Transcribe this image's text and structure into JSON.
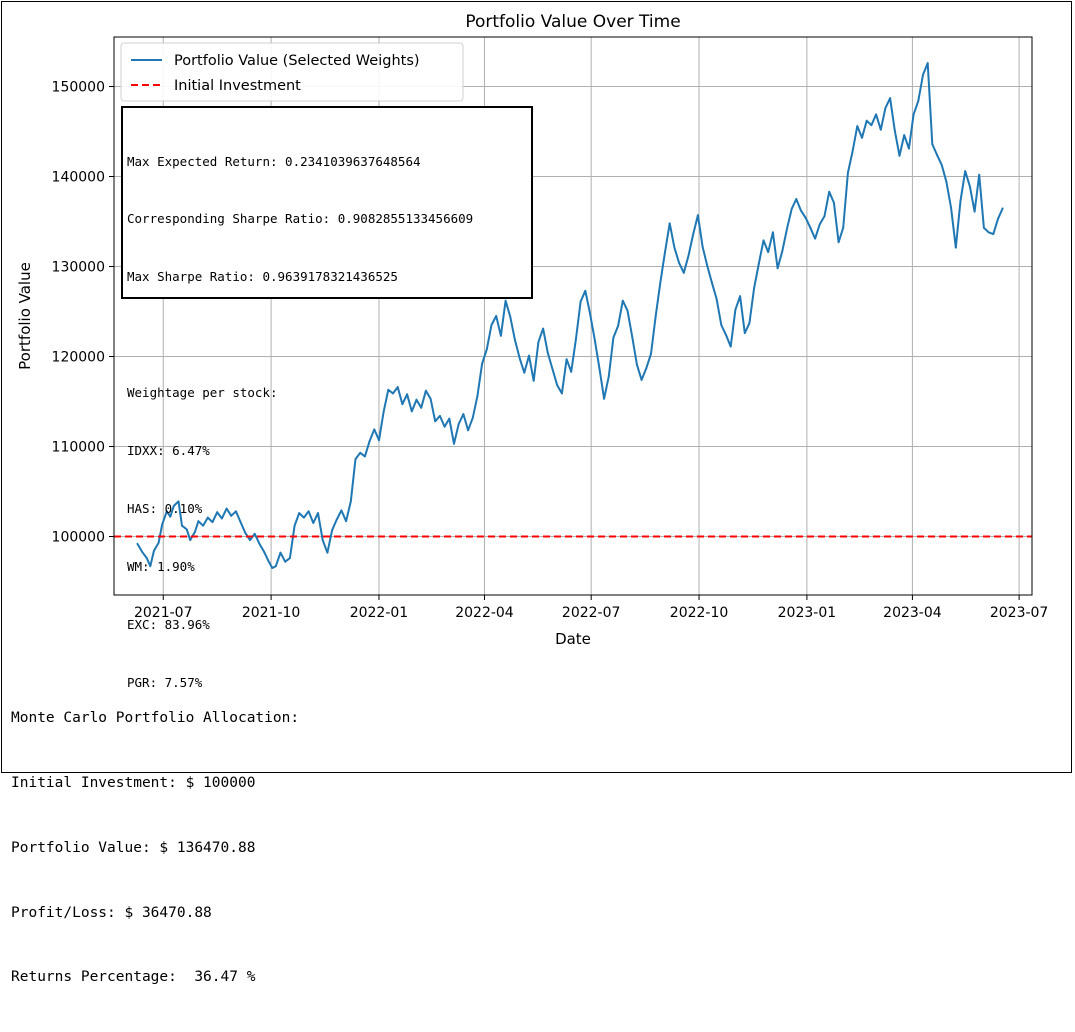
{
  "chart_data": {
    "type": "line",
    "title": "Portfolio Value Over Time",
    "xlabel": "Date",
    "ylabel": "Portfolio Value",
    "xlim": [
      "2021-05-20",
      "2023-07-12"
    ],
    "ylim": [
      93500,
      155500
    ],
    "x_ticks": [
      "2021-07-01",
      "2021-10-01",
      "2022-01-01",
      "2022-04-01",
      "2022-07-01",
      "2022-10-01",
      "2023-01-01",
      "2023-04-01",
      "2023-07-01"
    ],
    "x_tick_labels": [
      "2021-07",
      "2021-10",
      "2022-01",
      "2022-04",
      "2022-07",
      "2022-10",
      "2023-01",
      "2023-04",
      "2023-07"
    ],
    "y_ticks": [
      100000,
      110000,
      120000,
      130000,
      140000,
      150000
    ],
    "y_tick_labels": [
      "100000",
      "110000",
      "120000",
      "130000",
      "140000",
      "150000"
    ],
    "grid": true,
    "legend_position": "top-left",
    "series": [
      {
        "name": "Portfolio Value (Selected Weights)",
        "color": "#1f77b4",
        "style": "solid",
        "points": [
          [
            "2021-06-09",
            99200
          ],
          [
            "2021-06-13",
            98300
          ],
          [
            "2021-06-17",
            97600
          ],
          [
            "2021-06-20",
            96700
          ],
          [
            "2021-06-23",
            98400
          ],
          [
            "2021-06-27",
            99300
          ],
          [
            "2021-06-30",
            101300
          ],
          [
            "2021-07-04",
            102800
          ],
          [
            "2021-07-07",
            102200
          ],
          [
            "2021-07-10",
            103400
          ],
          [
            "2021-07-14",
            103900
          ],
          [
            "2021-07-17",
            101200
          ],
          [
            "2021-07-21",
            100800
          ],
          [
            "2021-07-24",
            99600
          ],
          [
            "2021-07-28",
            100500
          ],
          [
            "2021-07-31",
            101700
          ],
          [
            "2021-08-04",
            101200
          ],
          [
            "2021-08-08",
            102100
          ],
          [
            "2021-08-12",
            101600
          ],
          [
            "2021-08-16",
            102700
          ],
          [
            "2021-08-20",
            102000
          ],
          [
            "2021-08-24",
            103100
          ],
          [
            "2021-08-28",
            102300
          ],
          [
            "2021-09-01",
            102800
          ],
          [
            "2021-09-05",
            101600
          ],
          [
            "2021-09-09",
            100400
          ],
          [
            "2021-09-13",
            99600
          ],
          [
            "2021-09-17",
            100300
          ],
          [
            "2021-09-21",
            99200
          ],
          [
            "2021-09-25",
            98300
          ],
          [
            "2021-09-29",
            97200
          ],
          [
            "2021-10-02",
            96500
          ],
          [
            "2021-10-05",
            96700
          ],
          [
            "2021-10-09",
            98200
          ],
          [
            "2021-10-13",
            97200
          ],
          [
            "2021-10-17",
            97600
          ],
          [
            "2021-10-21",
            101200
          ],
          [
            "2021-10-25",
            102600
          ],
          [
            "2021-10-29",
            102100
          ],
          [
            "2021-11-02",
            102800
          ],
          [
            "2021-11-06",
            101500
          ],
          [
            "2021-11-10",
            102600
          ],
          [
            "2021-11-14",
            99600
          ],
          [
            "2021-11-18",
            98200
          ],
          [
            "2021-11-22",
            100700
          ],
          [
            "2021-11-26",
            101900
          ],
          [
            "2021-11-30",
            102900
          ],
          [
            "2021-12-04",
            101700
          ],
          [
            "2021-12-08",
            103900
          ],
          [
            "2021-12-12",
            108600
          ],
          [
            "2021-12-16",
            109300
          ],
          [
            "2021-12-20",
            108900
          ],
          [
            "2021-12-24",
            110600
          ],
          [
            "2021-12-28",
            111900
          ],
          [
            "2022-01-01",
            110700
          ],
          [
            "2022-01-05",
            113900
          ],
          [
            "2022-01-09",
            116300
          ],
          [
            "2022-01-13",
            115900
          ],
          [
            "2022-01-17",
            116600
          ],
          [
            "2022-01-21",
            114700
          ],
          [
            "2022-01-25",
            115800
          ],
          [
            "2022-01-29",
            113900
          ],
          [
            "2022-02-02",
            115200
          ],
          [
            "2022-02-06",
            114300
          ],
          [
            "2022-02-10",
            116200
          ],
          [
            "2022-02-14",
            115300
          ],
          [
            "2022-02-18",
            112800
          ],
          [
            "2022-02-22",
            113400
          ],
          [
            "2022-02-26",
            112200
          ],
          [
            "2022-03-02",
            113100
          ],
          [
            "2022-03-06",
            110300
          ],
          [
            "2022-03-10",
            112500
          ],
          [
            "2022-03-14",
            113600
          ],
          [
            "2022-03-18",
            111800
          ],
          [
            "2022-03-22",
            113200
          ],
          [
            "2022-03-26",
            115600
          ],
          [
            "2022-03-30",
            119200
          ],
          [
            "2022-04-03",
            120800
          ],
          [
            "2022-04-07",
            123500
          ],
          [
            "2022-04-11",
            124500
          ],
          [
            "2022-04-15",
            122300
          ],
          [
            "2022-04-19",
            126200
          ],
          [
            "2022-04-23",
            124400
          ],
          [
            "2022-04-27",
            121800
          ],
          [
            "2022-05-01",
            119800
          ],
          [
            "2022-05-05",
            118200
          ],
          [
            "2022-05-09",
            120100
          ],
          [
            "2022-05-13",
            117300
          ],
          [
            "2022-05-17",
            121600
          ],
          [
            "2022-05-21",
            123100
          ],
          [
            "2022-05-25",
            120400
          ],
          [
            "2022-05-29",
            118600
          ],
          [
            "2022-06-02",
            116800
          ],
          [
            "2022-06-06",
            115900
          ],
          [
            "2022-06-10",
            119700
          ],
          [
            "2022-06-14",
            118300
          ],
          [
            "2022-06-18",
            121900
          ],
          [
            "2022-06-22",
            126100
          ],
          [
            "2022-06-26",
            127300
          ],
          [
            "2022-06-30",
            124800
          ],
          [
            "2022-07-04",
            121900
          ],
          [
            "2022-07-08",
            118700
          ],
          [
            "2022-07-12",
            115300
          ],
          [
            "2022-07-16",
            117800
          ],
          [
            "2022-07-20",
            122100
          ],
          [
            "2022-07-24",
            123400
          ],
          [
            "2022-07-28",
            126200
          ],
          [
            "2022-08-01",
            125100
          ],
          [
            "2022-08-05",
            122200
          ],
          [
            "2022-08-09",
            119100
          ],
          [
            "2022-08-13",
            117400
          ],
          [
            "2022-08-17",
            118700
          ],
          [
            "2022-08-21",
            120300
          ],
          [
            "2022-08-25",
            124500
          ],
          [
            "2022-08-29",
            128200
          ],
          [
            "2022-09-02",
            131600
          ],
          [
            "2022-09-06",
            134800
          ],
          [
            "2022-09-10",
            132100
          ],
          [
            "2022-09-14",
            130400
          ],
          [
            "2022-09-18",
            129300
          ],
          [
            "2022-09-22",
            131200
          ],
          [
            "2022-09-26",
            133600
          ],
          [
            "2022-09-30",
            135700
          ],
          [
            "2022-10-04",
            132200
          ],
          [
            "2022-10-08",
            130100
          ],
          [
            "2022-10-12",
            128200
          ],
          [
            "2022-10-16",
            126400
          ],
          [
            "2022-10-20",
            123500
          ],
          [
            "2022-10-24",
            122400
          ],
          [
            "2022-10-28",
            121100
          ],
          [
            "2022-11-01",
            125200
          ],
          [
            "2022-11-05",
            126700
          ],
          [
            "2022-11-09",
            122600
          ],
          [
            "2022-11-13",
            123700
          ],
          [
            "2022-11-17",
            127600
          ],
          [
            "2022-11-21",
            130300
          ],
          [
            "2022-11-25",
            132900
          ],
          [
            "2022-11-29",
            131600
          ],
          [
            "2022-12-03",
            133800
          ],
          [
            "2022-12-07",
            129800
          ],
          [
            "2022-12-11",
            131700
          ],
          [
            "2022-12-15",
            134200
          ],
          [
            "2022-12-19",
            136400
          ],
          [
            "2022-12-23",
            137500
          ],
          [
            "2022-12-27",
            136200
          ],
          [
            "2022-12-31",
            135400
          ],
          [
            "2023-01-04",
            134300
          ],
          [
            "2023-01-08",
            133100
          ],
          [
            "2023-01-12",
            134700
          ],
          [
            "2023-01-16",
            135600
          ],
          [
            "2023-01-20",
            138300
          ],
          [
            "2023-01-24",
            137100
          ],
          [
            "2023-01-28",
            132700
          ],
          [
            "2023-02-01",
            134300
          ],
          [
            "2023-02-05",
            140400
          ],
          [
            "2023-02-09",
            142800
          ],
          [
            "2023-02-13",
            145600
          ],
          [
            "2023-02-17",
            144300
          ],
          [
            "2023-02-21",
            146200
          ],
          [
            "2023-02-25",
            145700
          ],
          [
            "2023-03-01",
            146900
          ],
          [
            "2023-03-05",
            145200
          ],
          [
            "2023-03-09",
            147600
          ],
          [
            "2023-03-13",
            148700
          ],
          [
            "2023-03-17",
            145100
          ],
          [
            "2023-03-21",
            142300
          ],
          [
            "2023-03-25",
            144600
          ],
          [
            "2023-03-29",
            143100
          ],
          [
            "2023-04-02",
            146900
          ],
          [
            "2023-04-06",
            148400
          ],
          [
            "2023-04-10",
            151300
          ],
          [
            "2023-04-14",
            152600
          ],
          [
            "2023-04-18",
            143600
          ],
          [
            "2023-04-22",
            142400
          ],
          [
            "2023-04-26",
            141300
          ],
          [
            "2023-04-30",
            139400
          ],
          [
            "2023-05-04",
            136500
          ],
          [
            "2023-05-08",
            132100
          ],
          [
            "2023-05-12",
            137300
          ],
          [
            "2023-05-16",
            140600
          ],
          [
            "2023-05-20",
            138900
          ],
          [
            "2023-05-24",
            136100
          ],
          [
            "2023-05-28",
            140200
          ],
          [
            "2023-06-01",
            134300
          ],
          [
            "2023-06-05",
            133800
          ],
          [
            "2023-06-09",
            133600
          ],
          [
            "2023-06-13",
            135300
          ],
          [
            "2023-06-17",
            136470
          ]
        ]
      },
      {
        "name": "Initial Investment",
        "color": "#ff0000",
        "style": "dashed",
        "horizontal_line": 100000
      }
    ]
  },
  "info_box": {
    "lines": [
      "Max Expected Return: 0.2341039637648564",
      "Corresponding Sharpe Ratio: 0.9082855133456609",
      "Max Sharpe Ratio: 0.9639178321436525",
      "",
      "Weightage per stock:",
      "IDXX: 6.47%",
      "HAS: 0.10%",
      "WM: 1.90%",
      "EXC: 83.96%",
      "PGR: 7.57%"
    ]
  },
  "summary": {
    "lines": [
      "Monte Carlo Portfolio Allocation:",
      "Initial Investment: $ 100000",
      "Portfolio Value: $ 136470.88",
      "Profit/Loss: $ 36470.88",
      "Returns Percentage:  36.47 %"
    ]
  }
}
